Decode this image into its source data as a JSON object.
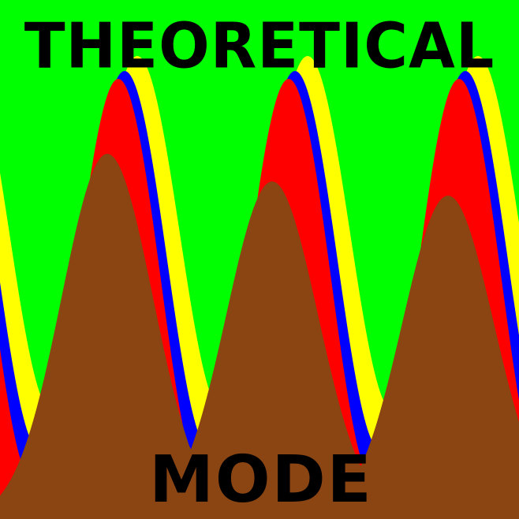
{
  "title_top": "THEORETICAL",
  "title_bottom": "MODE",
  "colors": {
    "sky": "#00ff00",
    "yellow_band": "#ffff00",
    "blue_band": "#0000ff",
    "red_band": "#ff0000",
    "ground": "#8b4513",
    "title_text": "#000000"
  }
}
